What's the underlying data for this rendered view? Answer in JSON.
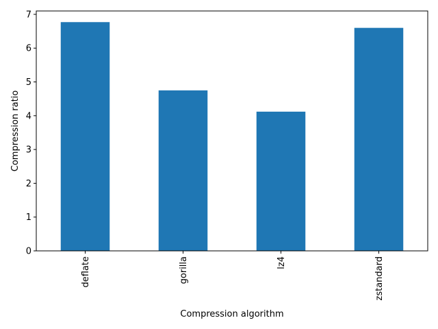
{
  "chart_data": {
    "type": "bar",
    "categories": [
      "deflate",
      "gorilla",
      "lz4",
      "zstandard"
    ],
    "values": [
      6.77,
      4.75,
      4.12,
      6.6
    ],
    "title": "",
    "xlabel": "Compression algorithm",
    "ylabel": "Compression ratio",
    "ylim": [
      0,
      7.1
    ],
    "yticks": [
      0,
      1,
      2,
      3,
      4,
      5,
      6,
      7
    ],
    "x_tick_rotation": "vertical",
    "grid": false,
    "legend": "none",
    "bar_color": "#1f77b4"
  }
}
